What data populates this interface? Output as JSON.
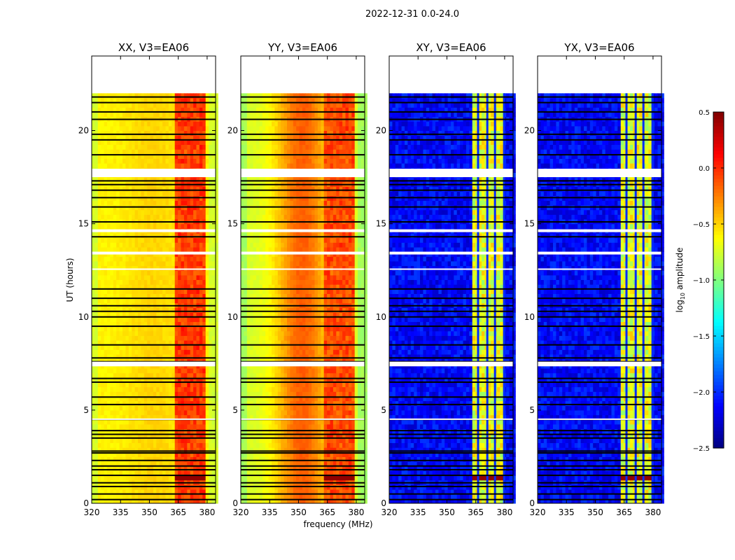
{
  "chart_data": {
    "type": "heatmap",
    "suptitle": "2022-12-31 0.0-24.0",
    "xlabel": "frequency (MHz)",
    "ylabel": "UT (hours)",
    "xlim": [
      320,
      384.4
    ],
    "ylim": [
      0,
      24
    ],
    "data_time_range": [
      0,
      22
    ],
    "xticks": [
      320,
      335,
      350,
      365,
      380
    ],
    "yticks": [
      0,
      5,
      10,
      15,
      20
    ],
    "colorbar": {
      "label": "log10 amplitude",
      "label_main": "log",
      "label_sub": "10",
      "label_rest": " amplitude",
      "colormap": "jet",
      "range": [
        -2.5,
        0.5
      ],
      "ticks": [
        "0.5",
        "0.0",
        "−0.5",
        "−1.0",
        "−1.5",
        "−2.0",
        "−2.5"
      ],
      "tick_values": [
        0.5,
        0.0,
        -0.5,
        -1.0,
        -1.5,
        -2.0,
        -2.5
      ]
    },
    "panels": [
      {
        "title": "XX, V3=EA06",
        "model": "parallel",
        "base": -0.6,
        "center_boost": 0.1,
        "band_level": -0.05
      },
      {
        "title": "YY, V3=EA06",
        "model": "parallel",
        "base": -0.75,
        "center_boost": 0.6,
        "band_level": -0.1
      },
      {
        "title": "XY, V3=EA06",
        "model": "cross",
        "base": -2.3,
        "center_boost": 0,
        "band_level": -0.8
      },
      {
        "title": "YX, V3=EA06",
        "model": "cross",
        "base": -2.3,
        "center_boost": 0,
        "band_level": -0.8
      }
    ],
    "bright_band_MHz": [
      363,
      380
    ],
    "band_gaps_MHz": [
      366.2,
      371,
      375,
      379.8
    ],
    "flagged_black_UT": [
      21.8,
      21.5,
      21.0,
      20.6,
      19.8,
      19.5,
      18.7,
      17.3,
      17.1,
      16.8,
      16.4,
      15.9,
      15.1,
      14.3,
      11.5,
      11.0,
      10.6,
      10.3,
      10.0,
      9.5,
      8.5,
      7.8,
      7.6,
      6.7,
      6.5,
      5.7,
      5.3,
      4.5,
      3.9,
      3.7,
      3.5,
      2.8,
      2.7,
      2.3,
      2.0,
      1.8,
      1.5,
      1.1,
      0.9,
      0.5,
      0.2
    ],
    "flagged_white_UT": [
      [
        17.5,
        17.95
      ],
      [
        14.55,
        14.7
      ],
      [
        13.35,
        13.5
      ],
      [
        12.55,
        12.6
      ],
      [
        7.35,
        7.6
      ],
      [
        4.5,
        4.55
      ]
    ],
    "high_rows_UT": [
      [
        1.15,
        1.35
      ]
    ]
  }
}
